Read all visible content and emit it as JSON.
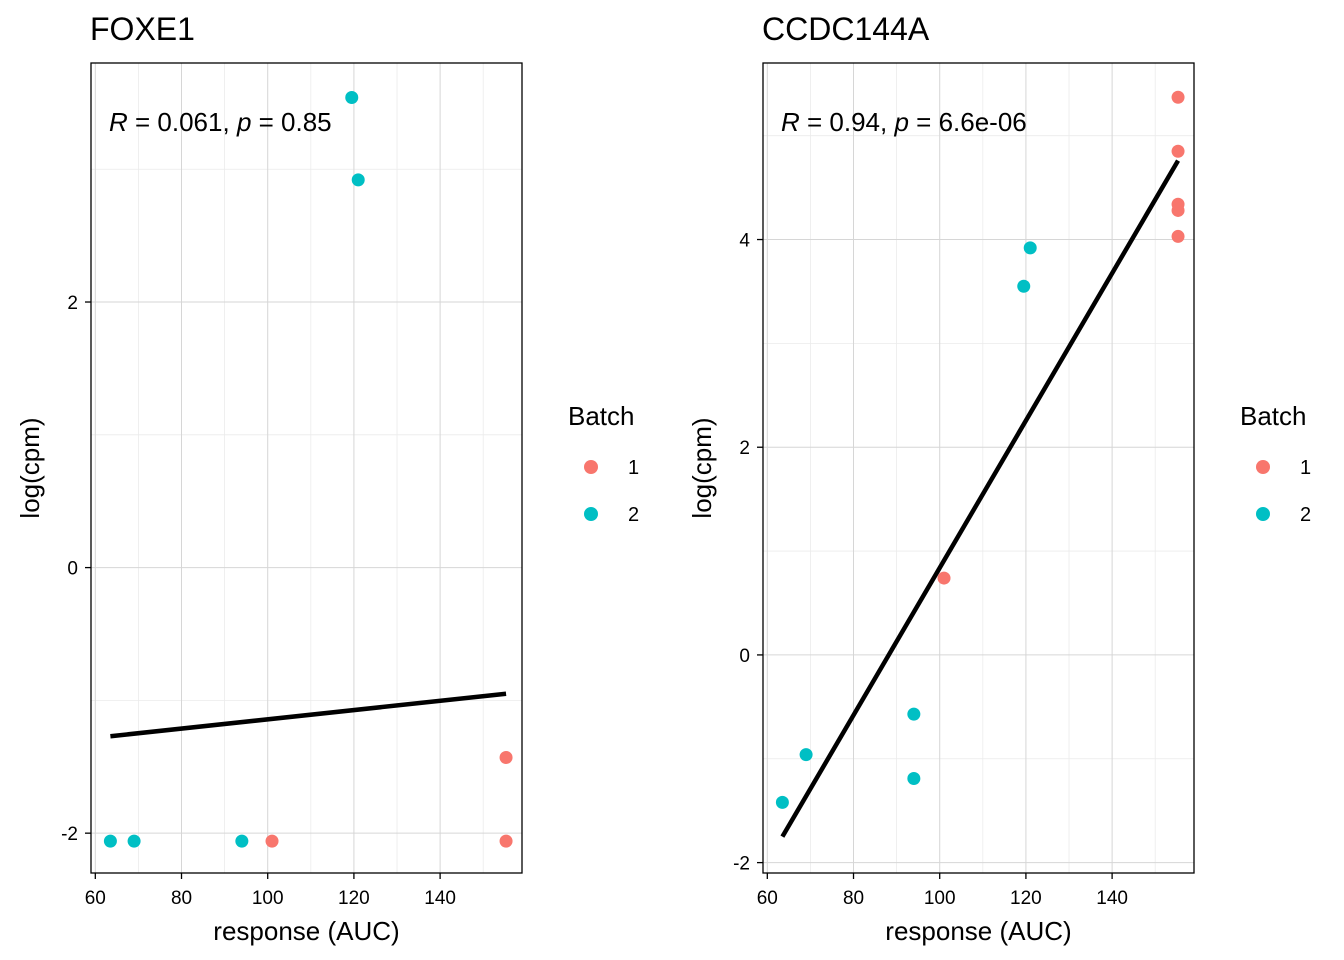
{
  "chart_data": [
    {
      "type": "scatter",
      "title": "FOXE1",
      "xlabel": "response (AUC)",
      "ylabel": "log(cpm)",
      "xlim": [
        59,
        159
      ],
      "ylim": [
        -2.3,
        3.8
      ],
      "x_ticks": [
        60,
        80,
        100,
        120,
        140
      ],
      "y_ticks": [
        -2,
        0,
        2
      ],
      "grid": true,
      "annotation": {
        "r_label": "R",
        "r_text": " = 0.061, ",
        "p_label": "p",
        "p_text": " = 0.85"
      },
      "regression_line": {
        "x": [
          63.5,
          155.3
        ],
        "y": [
          -1.27,
          -0.95
        ]
      },
      "series": [
        {
          "name": "1",
          "color": "#F8766D",
          "points": [
            [
              101,
              -2.06
            ],
            [
              155.3,
              -2.06
            ],
            [
              155.3,
              -1.43
            ]
          ]
        },
        {
          "name": "2",
          "color": "#00BFC4",
          "points": [
            [
              63.5,
              -2.06
            ],
            [
              69,
              -2.06
            ],
            [
              94,
              -2.06
            ],
            [
              119.5,
              3.54
            ],
            [
              121,
              2.92
            ]
          ]
        }
      ],
      "legend": {
        "title": "Batch",
        "position": "right"
      }
    },
    {
      "type": "scatter",
      "title": "CCDC144A",
      "xlabel": "response (AUC)",
      "ylabel": "log(cpm)",
      "xlim": [
        59,
        159
      ],
      "ylim": [
        -2.1,
        5.7
      ],
      "x_ticks": [
        60,
        80,
        100,
        120,
        140
      ],
      "y_ticks": [
        -2,
        0,
        2,
        4
      ],
      "grid": true,
      "annotation": {
        "r_label": "R",
        "r_text": " = 0.94, ",
        "p_label": "p",
        "p_text": " = 6.6e-06"
      },
      "regression_line": {
        "x": [
          63.5,
          155.3
        ],
        "y": [
          -1.75,
          4.76
        ]
      },
      "series": [
        {
          "name": "1",
          "color": "#F8766D",
          "points": [
            [
              101,
              0.74
            ],
            [
              155.3,
              5.37
            ],
            [
              155.3,
              4.85
            ],
            [
              155.3,
              4.34
            ],
            [
              155.3,
              4.28
            ],
            [
              155.3,
              4.03
            ]
          ]
        },
        {
          "name": "2",
          "color": "#00BFC4",
          "points": [
            [
              63.5,
              -1.42
            ],
            [
              69,
              -0.96
            ],
            [
              94,
              -0.57
            ],
            [
              94,
              -1.19
            ],
            [
              119.5,
              3.55
            ],
            [
              121,
              3.92
            ]
          ]
        }
      ],
      "legend": {
        "title": "Batch",
        "position": "right"
      }
    }
  ]
}
